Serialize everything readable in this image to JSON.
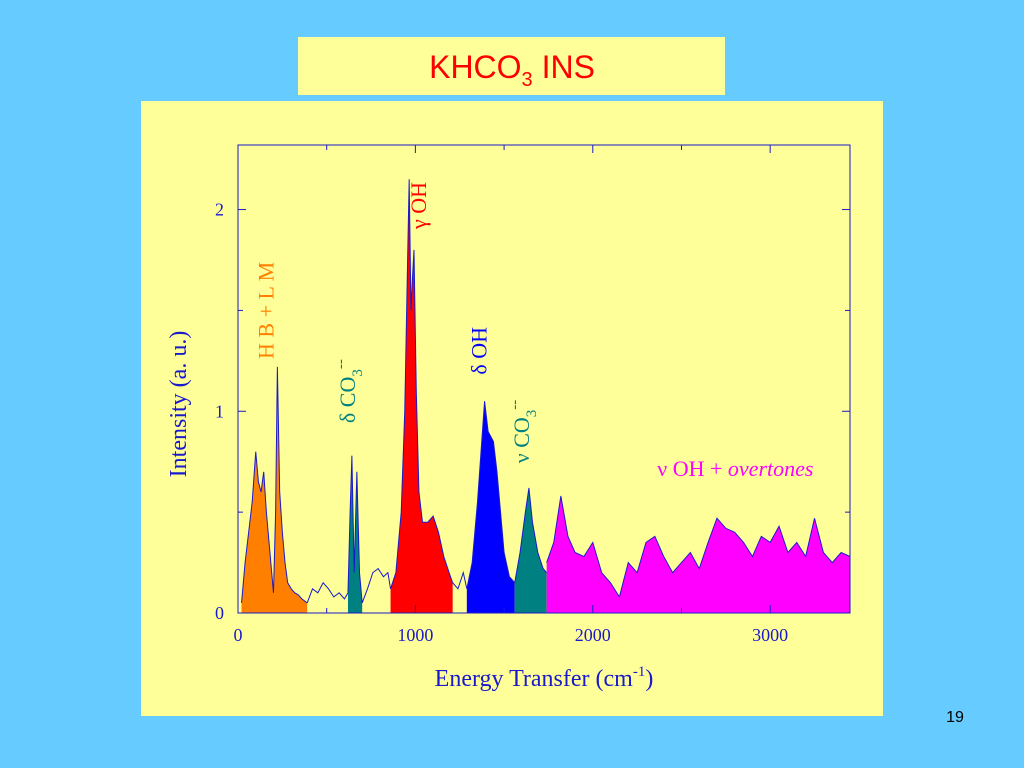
{
  "title": {
    "parts": [
      "KHCO",
      "3",
      " INS"
    ]
  },
  "page_number": "19",
  "chart_data": {
    "type": "area",
    "xlabel": {
      "parts": [
        "Energy Transfer (cm",
        "-1",
        ")"
      ]
    },
    "ylabel": "Intensity (a. u.)",
    "xlim": [
      0,
      3450
    ],
    "ylim": [
      0,
      2.32
    ],
    "xticks": [
      0,
      1000,
      2000,
      3000
    ],
    "xminor": [
      500,
      1500,
      2500
    ],
    "yticks": [
      0,
      1,
      2
    ],
    "yminor": [
      0.5,
      1.5
    ],
    "line_color": "#1a1acc",
    "series": [
      {
        "color": "#ff8000",
        "fill": true,
        "x": [
          20,
          40,
          60,
          80,
          100,
          115,
          130,
          145,
          160,
          180,
          200,
          212,
          222,
          235,
          250,
          265,
          280,
          300,
          320,
          340,
          360,
          390
        ],
        "values": [
          0.05,
          0.25,
          0.4,
          0.55,
          0.8,
          0.65,
          0.6,
          0.7,
          0.5,
          0.3,
          0.1,
          0.5,
          1.22,
          0.6,
          0.4,
          0.25,
          0.15,
          0.12,
          0.1,
          0.09,
          0.07,
          0.05
        ]
      },
      {
        "color": null,
        "fill": false,
        "x": [
          390,
          420,
          450,
          480,
          510,
          540,
          570,
          600,
          620
        ],
        "values": [
          0.05,
          0.12,
          0.1,
          0.15,
          0.12,
          0.08,
          0.1,
          0.07,
          0.1
        ]
      },
      {
        "color": "#008080",
        "fill": true,
        "x": [
          620,
          632,
          642,
          655,
          670,
          685,
          700
        ],
        "values": [
          0.1,
          0.5,
          0.78,
          0.2,
          0.7,
          0.2,
          0.05
        ]
      },
      {
        "color": null,
        "fill": false,
        "x": [
          700,
          730,
          760,
          790,
          820,
          845,
          860
        ],
        "values": [
          0.05,
          0.12,
          0.2,
          0.22,
          0.18,
          0.2,
          0.12
        ]
      },
      {
        "color": "#ff0000",
        "fill": true,
        "x": [
          860,
          890,
          920,
          940,
          955,
          965,
          975,
          983,
          992,
          1005,
          1020,
          1040,
          1070,
          1100,
          1130,
          1160,
          1190,
          1210
        ],
        "values": [
          0.12,
          0.2,
          0.5,
          1.0,
          1.7,
          2.15,
          1.5,
          1.65,
          1.8,
          1.1,
          0.6,
          0.45,
          0.45,
          0.48,
          0.4,
          0.28,
          0.2,
          0.15
        ]
      },
      {
        "color": null,
        "fill": false,
        "x": [
          1210,
          1240,
          1270,
          1290
        ],
        "values": [
          0.15,
          0.12,
          0.2,
          0.12
        ]
      },
      {
        "color": "#0000ff",
        "fill": true,
        "x": [
          1290,
          1320,
          1350,
          1370,
          1390,
          1410,
          1440,
          1460,
          1480,
          1500,
          1530,
          1560
        ],
        "values": [
          0.12,
          0.25,
          0.55,
          0.8,
          1.05,
          0.9,
          0.85,
          0.7,
          0.5,
          0.3,
          0.18,
          0.15
        ]
      },
      {
        "color": "#008080",
        "fill": true,
        "x": [
          1560,
          1590,
          1620,
          1640,
          1660,
          1690,
          1720,
          1740
        ],
        "values": [
          0.15,
          0.3,
          0.5,
          0.62,
          0.45,
          0.3,
          0.22,
          0.2
        ]
      },
      {
        "color": "#ff00ff",
        "fill": true,
        "x": [
          1740,
          1780,
          1820,
          1860,
          1900,
          1950,
          2000,
          2050,
          2100,
          2150,
          2200,
          2250,
          2300,
          2350,
          2400,
          2450,
          2500,
          2550,
          2600,
          2650,
          2700,
          2750,
          2800,
          2850,
          2900,
          2950,
          3000,
          3050,
          3100,
          3150,
          3200,
          3250,
          3300,
          3350,
          3400,
          3450
        ],
        "values": [
          0.25,
          0.35,
          0.58,
          0.38,
          0.3,
          0.28,
          0.35,
          0.2,
          0.15,
          0.08,
          0.25,
          0.2,
          0.35,
          0.38,
          0.28,
          0.2,
          0.25,
          0.3,
          0.22,
          0.35,
          0.47,
          0.42,
          0.4,
          0.35,
          0.28,
          0.38,
          0.35,
          0.43,
          0.3,
          0.35,
          0.28,
          0.47,
          0.3,
          0.25,
          0.3,
          0.28
        ]
      }
    ],
    "annotations": [
      {
        "parts": [
          "H B + L M"
        ],
        "color": "#ff8000",
        "x": 200,
        "y": 1.5,
        "vertical": true
      },
      {
        "parts": [
          "δ CO",
          "3",
          "--"
        ],
        "color": "#008080",
        "x": 660,
        "y": 1.1,
        "vertical": true
      },
      {
        "parts": [
          "γ OH"
        ],
        "color": "#ff0000",
        "x": 1060,
        "y": 2.02,
        "vertical": true
      },
      {
        "parts": [
          "δ OH"
        ],
        "color": "#0000ff",
        "x": 1400,
        "y": 1.3,
        "vertical": true
      },
      {
        "parts": [
          "ν CO",
          "3",
          "--"
        ],
        "color": "#008080",
        "x": 1640,
        "y": 0.9,
        "vertical": true
      },
      {
        "parts": [
          "ν OH + ",
          "overtones"
        ],
        "color": "#ff00ff",
        "x": 2240,
        "y": 0.68,
        "vertical": false
      }
    ]
  }
}
